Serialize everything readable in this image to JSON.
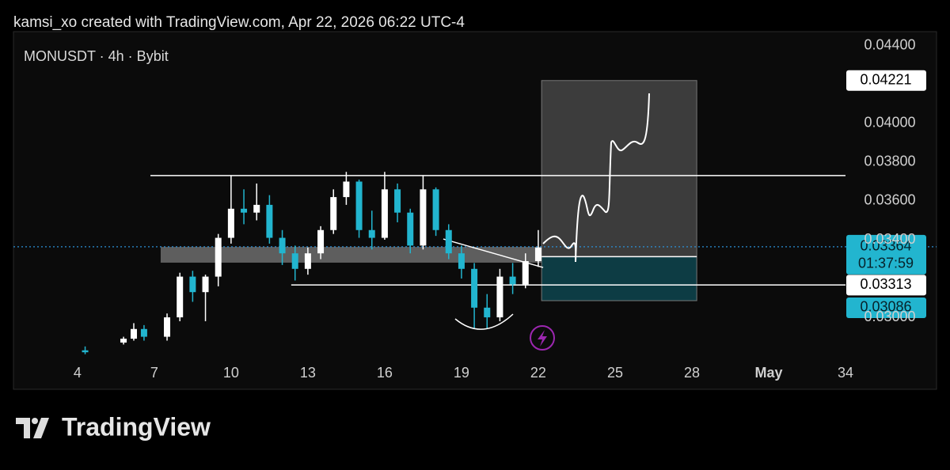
{
  "header": "kamsi_xo created with TradingView.com, Apr 22, 2026 06:22 UTC-4",
  "brand": "TradingView",
  "chart_data": {
    "type": "candlestick",
    "title": "MONUSDT · 4h · Bybit",
    "x": [
      4.3,
      5.8,
      6.2,
      6.6,
      7.5,
      8.0,
      8.5,
      9.0,
      9.5,
      10.0,
      10.5,
      11.0,
      11.5,
      12.0,
      12.5,
      13.0,
      13.5,
      14.0,
      14.5,
      15.0,
      15.5,
      16.0,
      16.5,
      17.0,
      17.5,
      18.0,
      18.5,
      19.0,
      19.5,
      20.0,
      20.5,
      21.0,
      21.5,
      22.0
    ],
    "open": [
      0.0283,
      0.0287,
      0.0289,
      0.0294,
      0.029,
      0.03,
      0.0321,
      0.0313,
      0.0321,
      0.0341,
      0.0356,
      0.0354,
      0.0358,
      0.0341,
      0.0333,
      0.0325,
      0.0333,
      0.0345,
      0.0362,
      0.037,
      0.0345,
      0.0341,
      0.0366,
      0.0354,
      0.0337,
      0.0366,
      0.0345,
      0.0333,
      0.0325,
      0.0305,
      0.03,
      0.0321,
      0.0317,
      0.0329
    ],
    "high": [
      0.0285,
      0.029,
      0.0297,
      0.0296,
      0.0302,
      0.0323,
      0.0324,
      0.0322,
      0.0343,
      0.0373,
      0.0366,
      0.0369,
      0.0363,
      0.0345,
      0.0337,
      0.0336,
      0.0347,
      0.0366,
      0.0375,
      0.0371,
      0.0355,
      0.0375,
      0.0369,
      0.0356,
      0.0373,
      0.0367,
      0.0348,
      0.0337,
      0.0328,
      0.0312,
      0.0325,
      0.0328,
      0.0333,
      0.0345
    ],
    "low": [
      0.0281,
      0.0286,
      0.0288,
      0.0288,
      0.0288,
      0.0298,
      0.0308,
      0.0298,
      0.0316,
      0.0338,
      0.0348,
      0.035,
      0.0338,
      0.0327,
      0.0319,
      0.0322,
      0.033,
      0.0343,
      0.0358,
      0.0341,
      0.0335,
      0.034,
      0.0349,
      0.0333,
      0.0335,
      0.0342,
      0.033,
      0.032,
      0.0294,
      0.0294,
      0.0298,
      0.0312,
      0.0315,
      0.0326
    ],
    "close": [
      0.0282,
      0.0289,
      0.0294,
      0.029,
      0.03,
      0.0321,
      0.0313,
      0.0321,
      0.0341,
      0.0356,
      0.0354,
      0.0358,
      0.0341,
      0.0333,
      0.0325,
      0.0333,
      0.0345,
      0.0362,
      0.037,
      0.0345,
      0.0341,
      0.0366,
      0.0354,
      0.0337,
      0.0366,
      0.0345,
      0.0333,
      0.0325,
      0.0305,
      0.03,
      0.0321,
      0.0317,
      0.0329,
      0.0336
    ],
    "up_color": "#ffffff",
    "down_color": "#22b5cf",
    "xlim": [
      1.5,
      34
    ],
    "xticks": [
      4,
      7,
      10,
      13,
      16,
      19,
      22,
      25,
      28,
      {
        "value": 31,
        "label": "May"
      },
      34
    ],
    "ylim": [
      0.0278,
      0.04473
    ],
    "yticks": [
      {
        "value": 0.044,
        "label": "0.04400"
      },
      {
        "value": 0.04,
        "label": "0.04000"
      },
      {
        "value": 0.038,
        "label": "0.03800"
      },
      {
        "value": 0.036,
        "label": "0.03600"
      },
      {
        "value": 0.034,
        "label": "0.03400"
      },
      {
        "value": 0.03,
        "label": "0.03000"
      }
    ],
    "levels": [
      {
        "value": 0.03731,
        "from": 6.85,
        "to": 34
      },
      {
        "value": 0.03167,
        "from": 12.35,
        "to": 34
      },
      {
        "value": 0.03313,
        "from": 22.13,
        "to": 28.19
      }
    ],
    "zones": [
      {
        "from": 7.25,
        "to": 25.7,
        "low": 0.03282,
        "high": 0.03363,
        "color": "#5e5e5e"
      },
      {
        "from": 22.13,
        "to": 28.19,
        "low": 0.03313,
        "high": 0.04221,
        "color": "#3c3c3c"
      },
      {
        "from": 22.13,
        "to": 28.19,
        "low": 0.03086,
        "high": 0.03313,
        "color": "#0d3c44"
      }
    ],
    "trendline": {
      "x": [
        18.29,
        22.19
      ],
      "y": [
        0.03404,
        0.03257
      ]
    },
    "current_price": 0.03364,
    "price_labels": [
      {
        "value": 0.04221,
        "label": "0.04221",
        "color": "#ffffff"
      },
      {
        "value": 0.03364,
        "label": "0.03364",
        "color": "#22b5cf",
        "countdown": "01:37:59"
      },
      {
        "value": 0.03313,
        "label": "0.03313",
        "color": "#ffffff"
      },
      {
        "value": 0.03086,
        "label": "0.03086",
        "color": "#22b5cf"
      }
    ]
  }
}
